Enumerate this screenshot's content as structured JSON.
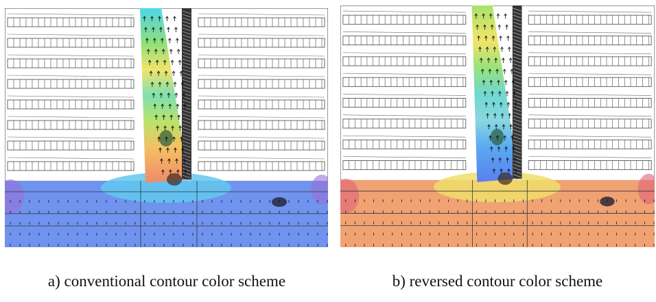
{
  "panels": [
    {
      "caption": "a) conventional contour color scheme"
    },
    {
      "caption": "b) reversed contour color scheme"
    }
  ]
}
